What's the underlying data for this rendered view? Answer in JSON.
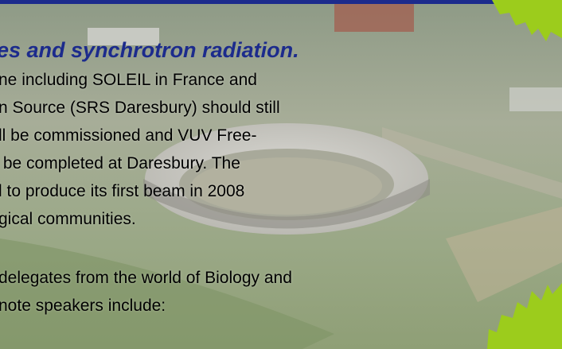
{
  "heading": "es and synchrotron radiation.",
  "paragraphs": [
    {
      "lines": [
        "ne including SOLEIL in France and",
        "n Source (SRS Daresbury) should still",
        "ll be commissioned and VUV Free-",
        " be completed at Daresbury. The",
        "l to produce its first beam in 2008",
        "gical communities."
      ]
    },
    {
      "lines": [
        "delegates from the world of Biology and",
        "note speakers include:"
      ]
    }
  ]
}
